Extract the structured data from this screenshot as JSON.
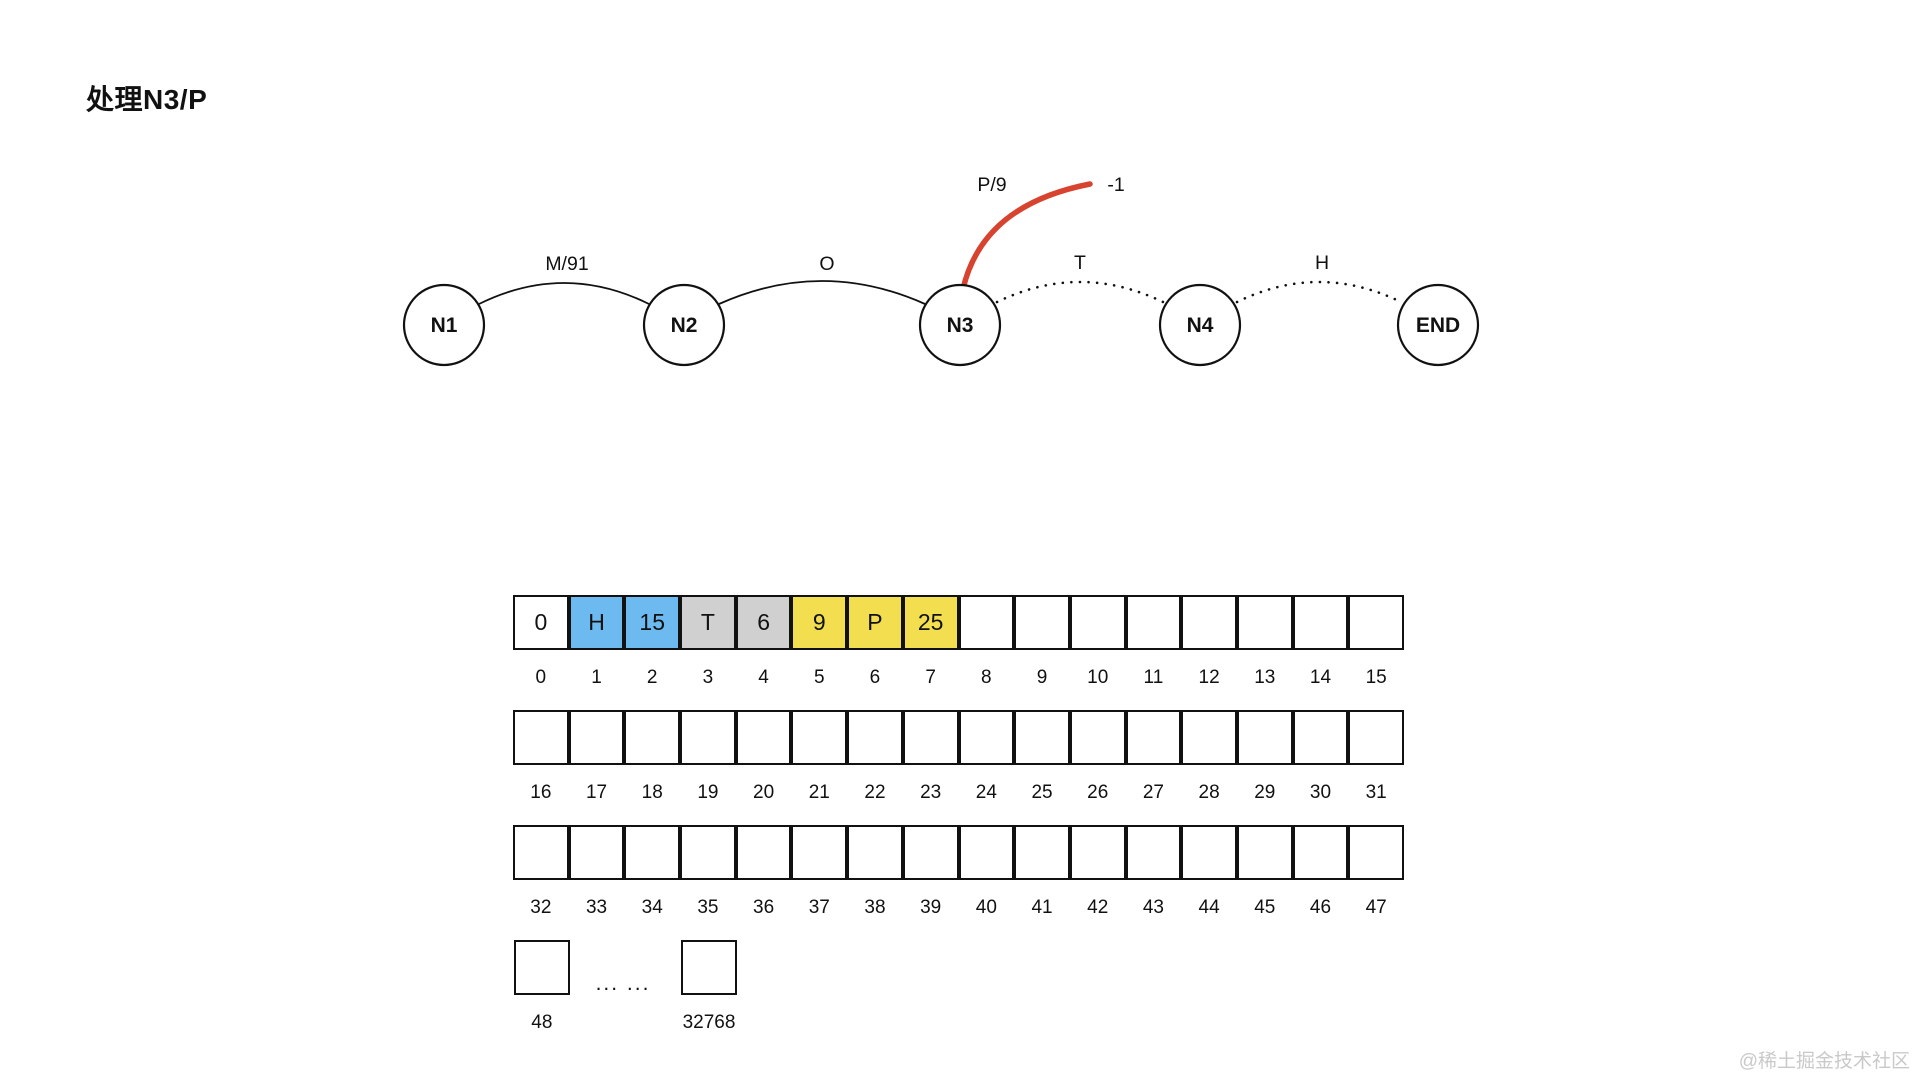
{
  "title": "处理N3/P",
  "watermark": "@稀土掘金技术社区",
  "colors": {
    "white": "#ffffff",
    "blue": "#6cbaef",
    "gray": "#d0d0d0",
    "yellow": "#f2de4e",
    "red": "#d8432f"
  },
  "graph": {
    "nodes": [
      {
        "label": "N1"
      },
      {
        "label": "N2"
      },
      {
        "label": "N3"
      },
      {
        "label": "N4"
      },
      {
        "label": "END"
      }
    ],
    "edges": [
      {
        "label": "M/91",
        "style": "solid"
      },
      {
        "label": "O",
        "style": "solid"
      },
      {
        "label": "T",
        "style": "dotted"
      },
      {
        "label": "H",
        "style": "dotted"
      }
    ],
    "red_edge": {
      "label": "P/9",
      "value": "-1"
    }
  },
  "array": {
    "rows": [
      {
        "cells": [
          {
            "v": "0",
            "c": "white"
          },
          {
            "v": "H",
            "c": "blue"
          },
          {
            "v": "15",
            "c": "blue"
          },
          {
            "v": "T",
            "c": "gray"
          },
          {
            "v": "6",
            "c": "gray"
          },
          {
            "v": "9",
            "c": "yellow"
          },
          {
            "v": "P",
            "c": "yellow"
          },
          {
            "v": "25",
            "c": "yellow"
          },
          {
            "v": "",
            "c": "white"
          },
          {
            "v": "",
            "c": "white"
          },
          {
            "v": "",
            "c": "white"
          },
          {
            "v": "",
            "c": "white"
          },
          {
            "v": "",
            "c": "white"
          },
          {
            "v": "",
            "c": "white"
          },
          {
            "v": "",
            "c": "white"
          },
          {
            "v": "",
            "c": "white"
          }
        ],
        "indices": [
          "0",
          "1",
          "2",
          "3",
          "4",
          "5",
          "6",
          "7",
          "8",
          "9",
          "10",
          "11",
          "12",
          "13",
          "14",
          "15"
        ]
      },
      {
        "cells": [
          {
            "v": "",
            "c": "white"
          },
          {
            "v": "",
            "c": "white"
          },
          {
            "v": "",
            "c": "white"
          },
          {
            "v": "",
            "c": "white"
          },
          {
            "v": "",
            "c": "white"
          },
          {
            "v": "",
            "c": "white"
          },
          {
            "v": "",
            "c": "white"
          },
          {
            "v": "",
            "c": "white"
          },
          {
            "v": "",
            "c": "white"
          },
          {
            "v": "",
            "c": "white"
          },
          {
            "v": "",
            "c": "white"
          },
          {
            "v": "",
            "c": "white"
          },
          {
            "v": "",
            "c": "white"
          },
          {
            "v": "",
            "c": "white"
          },
          {
            "v": "",
            "c": "white"
          },
          {
            "v": "",
            "c": "white"
          }
        ],
        "indices": [
          "16",
          "17",
          "18",
          "19",
          "20",
          "21",
          "22",
          "23",
          "24",
          "25",
          "26",
          "27",
          "28",
          "29",
          "30",
          "31"
        ]
      },
      {
        "cells": [
          {
            "v": "",
            "c": "white"
          },
          {
            "v": "",
            "c": "white"
          },
          {
            "v": "",
            "c": "white"
          },
          {
            "v": "",
            "c": "white"
          },
          {
            "v": "",
            "c": "white"
          },
          {
            "v": "",
            "c": "white"
          },
          {
            "v": "",
            "c": "white"
          },
          {
            "v": "",
            "c": "white"
          },
          {
            "v": "",
            "c": "white"
          },
          {
            "v": "",
            "c": "white"
          },
          {
            "v": "",
            "c": "white"
          },
          {
            "v": "",
            "c": "white"
          },
          {
            "v": "",
            "c": "white"
          },
          {
            "v": "",
            "c": "white"
          },
          {
            "v": "",
            "c": "white"
          },
          {
            "v": "",
            "c": "white"
          }
        ],
        "indices": [
          "32",
          "33",
          "34",
          "35",
          "36",
          "37",
          "38",
          "39",
          "40",
          "41",
          "42",
          "43",
          "44",
          "45",
          "46",
          "47"
        ]
      }
    ],
    "tail": {
      "first_index": "48",
      "dots": "... ...",
      "last_index": "32768"
    }
  }
}
